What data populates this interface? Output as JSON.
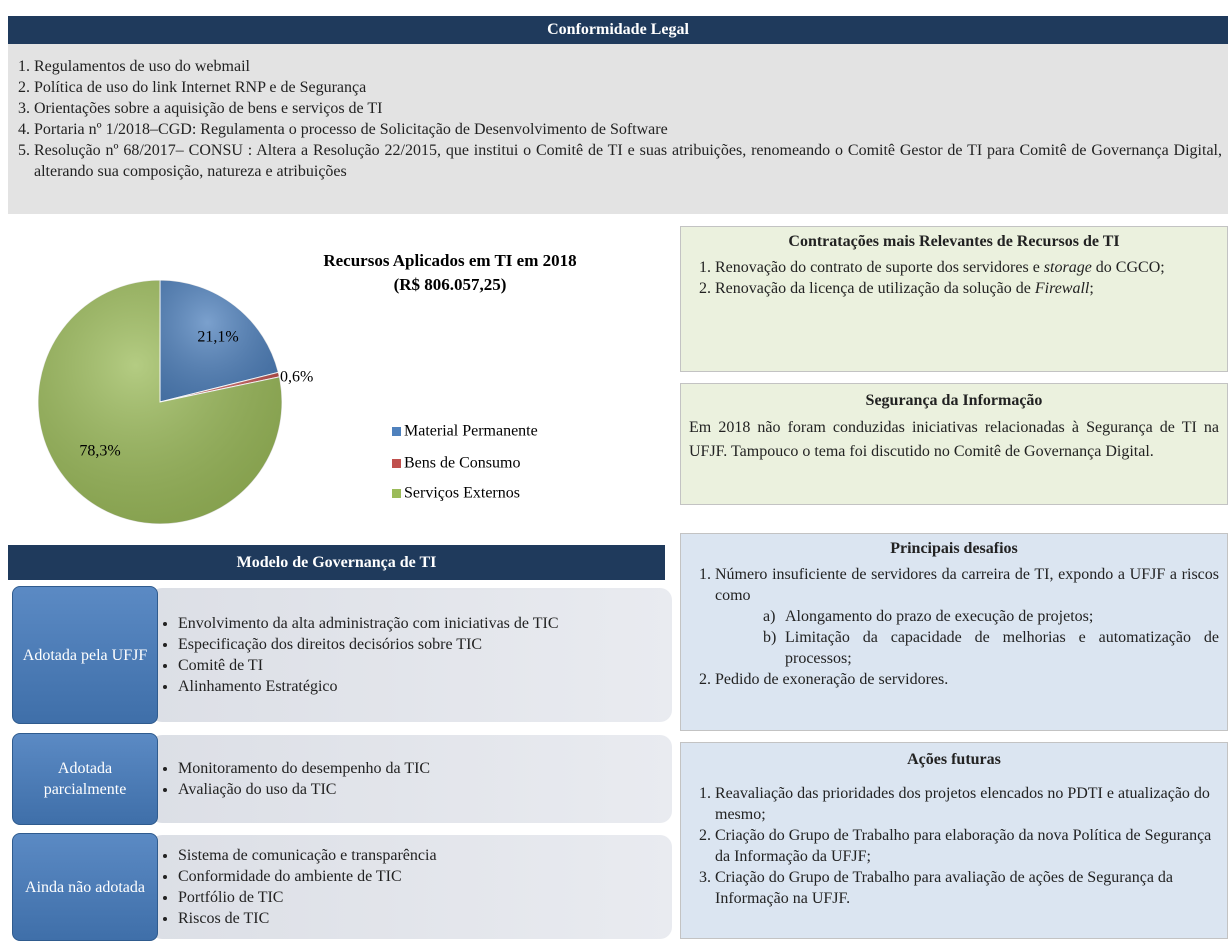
{
  "conformidade": {
    "title": "Conformidade Legal",
    "items": [
      "Regulamentos de uso do webmail",
      "Política de uso do link Internet RNP e de Segurança",
      "Orientações sobre a aquisição de bens e serviços de TI",
      "Portaria nº 1/2018–CGD: Regulamenta o processo de Solicitação de Desenvolvimento de Software",
      "Resolução nº 68/2017– CONSU : Altera a Resolução 22/2015, que institui o Comitê de TI e suas atribuições, renomeando o Comitê Gestor de TI para Comitê de Governança Digital, alterando sua composição, natureza e atribuições"
    ]
  },
  "chart_data": {
    "type": "pie",
    "title": "Recursos Aplicados em TI em 2018",
    "subtitle": "(R$ 806.057,25)",
    "categories": [
      "Material Permanente",
      "Bens de Consumo",
      "Serviços Externos"
    ],
    "values": [
      21.1,
      0.6,
      78.3
    ],
    "value_labels": [
      "21,1%",
      "0,6%",
      "78,3%"
    ],
    "colors": [
      "#4f81bd",
      "#c0504d",
      "#9bbb59"
    ]
  },
  "contratacoes": {
    "title": "Contratações mais Relevantes de Recursos de TI",
    "items": [
      [
        "Renovação do contrato de suporte dos servidores e ",
        "storage",
        " do CGCO;"
      ],
      [
        "Renovação da licença de utilização da solução de ",
        "Firewall",
        ";"
      ]
    ]
  },
  "seguranca": {
    "title": "Segurança da Informação",
    "text": "Em 2018 não foram conduzidas iniciativas relacionadas à Segurança de TI na UFJF. Tampouco o tema foi discutido no Comitê de Governança Digital."
  },
  "desafios": {
    "title": "Principais desafios",
    "items": [
      {
        "text": "Número insuficiente de servidores da carreira de TI, expondo a UFJF a riscos como",
        "subitems": [
          {
            "marker": "a)",
            "text": "Alongamento do prazo de execução de projetos;"
          },
          {
            "marker": "b)",
            "text": "Limitação da capacidade de melhorias e automatização de processos;"
          }
        ]
      },
      {
        "text": "Pedido de exoneração de servidores."
      }
    ]
  },
  "acoes": {
    "title": "Ações futuras",
    "items": [
      "Reavaliação das prioridades dos projetos elencados no PDTI e atualização do mesmo;",
      "Criação do Grupo de Trabalho para elaboração da nova Política de Segurança da Informação da UFJF;",
      "Criação do Grupo de Trabalho para avaliação de ações de Segurança da Informação na UFJF."
    ]
  },
  "governanca": {
    "title": "Modelo de Governança de TI",
    "rows": [
      {
        "label": "Adotada pela UFJF",
        "items": [
          "Envolvimento da alta administração com iniciativas de TIC",
          "Especificação dos direitos decisórios sobre TIC",
          "Comitê de TI",
          "Alinhamento Estratégico"
        ]
      },
      {
        "label": "Adotada parcialmente",
        "items": [
          "Monitoramento do desempenho da TIC",
          "Avaliação do uso da TIC"
        ]
      },
      {
        "label": "Ainda não adotada",
        "items": [
          "Sistema de comunicação e transparência",
          "Conformidade do ambiente de TIC",
          "Portfólio de TIC",
          "Riscos de TIC"
        ]
      }
    ]
  }
}
